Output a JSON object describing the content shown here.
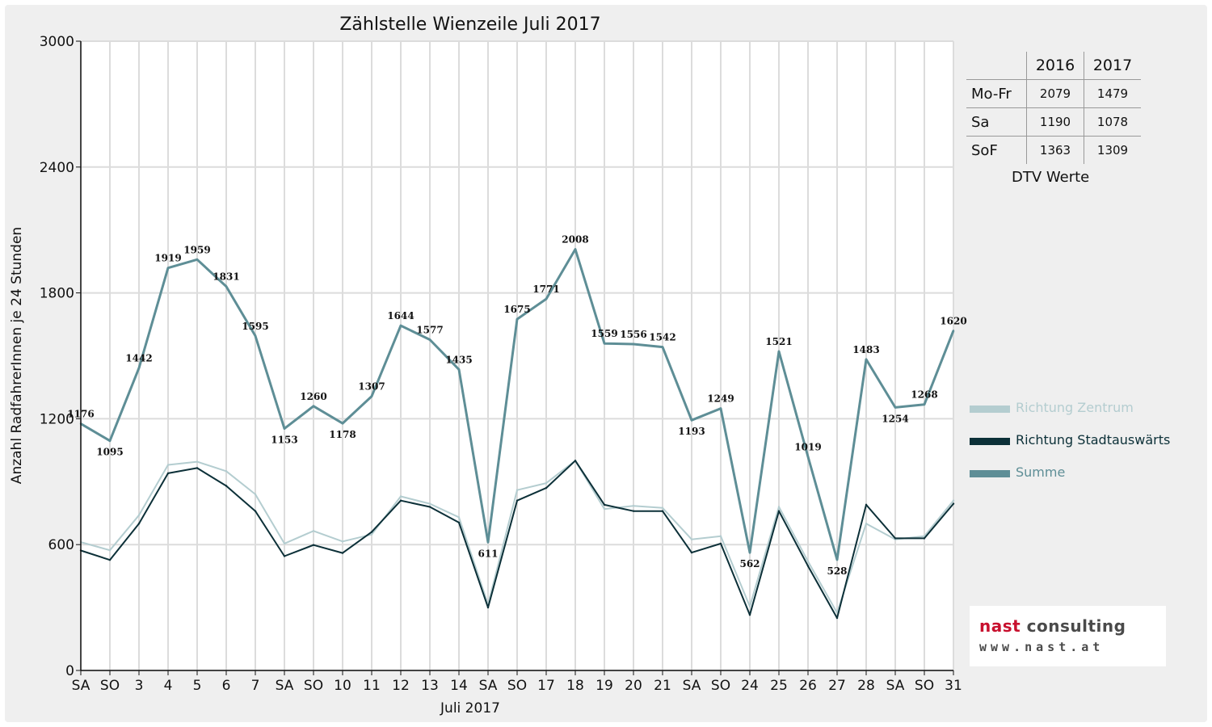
{
  "chart_data": {
    "type": "line",
    "title": "Zählstelle Wienzeile Juli 2017",
    "xlabel": "Juli 2017",
    "ylabel": "Anzahl RadfahrerInnen je 24 Stunden",
    "ylim": [
      0,
      3000
    ],
    "yticks": [
      "0",
      "600",
      "1200",
      "1800",
      "2400",
      "3000"
    ],
    "grid": true,
    "legend_position": "right",
    "categories": [
      "SA",
      "SO",
      "3",
      "4",
      "5",
      "6",
      "7",
      "SA",
      "SO",
      "10",
      "11",
      "12",
      "13",
      "14",
      "SA",
      "SO",
      "17",
      "18",
      "19",
      "20",
      "21",
      "SA",
      "SO",
      "24",
      "25",
      "26",
      "27",
      "28",
      "SA",
      "SO",
      "31"
    ],
    "highlight_categories": [
      "SO"
    ],
    "highlight_color": "#e00000",
    "series": [
      {
        "name": "Richtung Zentrum",
        "color": "#b4cdd0",
        "values": [
          612,
          573,
          740,
          980,
          995,
          950,
          840,
          605,
          665,
          615,
          648,
          830,
          795,
          730,
          315,
          860,
          893,
          1000,
          770,
          785,
          775,
          625,
          640,
          305,
          780,
          520,
          275,
          700,
          625,
          640,
          810
        ]
      },
      {
        "name": "Richtung Stadtauswärts",
        "color": "#0c3038",
        "values": [
          572,
          527,
          700,
          940,
          965,
          880,
          760,
          545,
          598,
          560,
          660,
          810,
          780,
          705,
          300,
          810,
          870,
          1000,
          790,
          760,
          760,
          562,
          605,
          265,
          760,
          498,
          250,
          790,
          630,
          630,
          795
        ]
      },
      {
        "name": "Summe",
        "color": "#5e8e96",
        "values": [
          1176,
          1095,
          1442,
          1919,
          1959,
          1831,
          1595,
          1153,
          1260,
          1178,
          1307,
          1644,
          1577,
          1435,
          611,
          1675,
          1771,
          2008,
          1559,
          1556,
          1542,
          1193,
          1249,
          562,
          1521,
          1019,
          528,
          1483,
          1254,
          1268,
          1620
        ]
      }
    ],
    "data_labels": [
      "1176",
      "1095",
      "1442",
      "1919",
      "1959",
      "1831",
      "1595",
      "1153",
      "1260",
      "1178",
      "1307",
      "1644",
      "1577",
      "1435",
      "611",
      "1675",
      "1771",
      "2008",
      "1559",
      "1556",
      "1542",
      "1193",
      "1249",
      "562",
      "1521",
      "1019",
      "528",
      "1483",
      "1254",
      "1268",
      "1620"
    ]
  },
  "dtv_table": {
    "caption": "DTV Werte",
    "headers": [
      "2016",
      "2017"
    ],
    "rows": [
      {
        "label": "Mo-Fr",
        "v2016": "2079",
        "v2017": "1479"
      },
      {
        "label": "Sa",
        "v2016": "1190",
        "v2017": "1078"
      },
      {
        "label": "SoF",
        "v2016": "1363",
        "v2017": "1309"
      }
    ]
  },
  "logo": {
    "name_part1": "nast",
    "name_part2": " consulting",
    "url": "www.nast.at",
    "accent": "#c8102e"
  }
}
